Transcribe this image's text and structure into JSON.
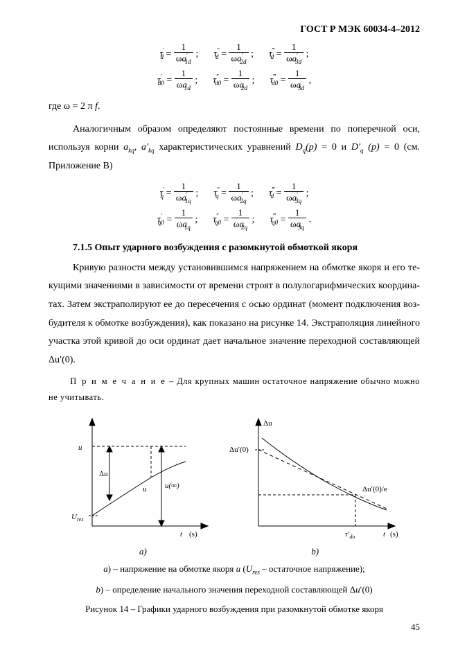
{
  "header": "ГОСТ Р МЭК 60034-4–2012",
  "eq1": {
    "t1": {
      "lhs": "τ",
      "lhs_sub": "d",
      "lhs_sup": "′",
      "num": "1",
      "den_pre": "ω",
      "den_var": "a",
      "den_sub": "1d",
      "den_sup": "′"
    },
    "t2": {
      "lhs": "τ",
      "lhs_sub": "d",
      "lhs_sup": "″",
      "num": "1",
      "den_pre": "ω",
      "den_var": "a",
      "den_sub": "2d",
      "den_sup": "′"
    },
    "t3": {
      "lhs": "τ",
      "lhs_sub": "d",
      "lhs_sup": "‴",
      "num": "1",
      "den_pre": "ω",
      "den_var": "a",
      "den_sub": "3d",
      "den_sup": "′"
    }
  },
  "eq2": {
    "t1": {
      "lhs": "τ",
      "lhs_sub": "d0",
      "lhs_sup": "′",
      "num": "1",
      "den_pre": "ω",
      "den_var": "a",
      "den_sub": "1d",
      "den_sup": ""
    },
    "t2": {
      "lhs": "τ",
      "lhs_sub": "d0",
      "lhs_sup": "″",
      "num": "1",
      "den_pre": "ω",
      "den_var": "a",
      "den_sub": "2d",
      "den_sup": ""
    },
    "t3": {
      "lhs": "τ",
      "lhs_sub": "d0",
      "lhs_sup": "‴",
      "num": "1",
      "den_pre": "ω",
      "den_var": "a",
      "den_sub": "3d",
      "den_sup": ""
    }
  },
  "where_line": "где ω = 2 π ",
  "where_f": "f",
  "where_dot": ".",
  "para1_a": "Аналогичным образом определяют постоянные времени по поперечной оси, исполь­зуя корни ",
  "para1_b": " характеристических уравнений ",
  "para1_c": " = 0 и ",
  "para1_d": " = 0 (см. Приложение В)",
  "a_kq": "a",
  "a_kq_sub": "kq",
  "ap_kq": "a′",
  "ap_kq_sub": "kq",
  "Dq": "D",
  "Dq_sub": "q",
  "Dq_arg": "(p)",
  "Dqp": "D′",
  "Dqp_sub": "q",
  "Dqp_arg": " (p)",
  "eq3": {
    "t1": {
      "lhs": "τ",
      "lhs_sub": "q",
      "lhs_sup": "′",
      "num": "1",
      "den_pre": "ω",
      "den_var": "a",
      "den_sub": "1q",
      "den_sup": "′"
    },
    "t2": {
      "lhs": "τ",
      "lhs_sub": "q",
      "lhs_sup": "″",
      "num": "1",
      "den_pre": "ω",
      "den_var": "a",
      "den_sub": "2q",
      "den_sup": "′"
    },
    "t3": {
      "lhs": "τ",
      "lhs_sub": "d",
      "lhs_sup": "‴",
      "num": "1",
      "den_pre": "ω",
      "den_var": "a",
      "den_sub": "3q",
      "den_sup": "′"
    }
  },
  "eq4": {
    "t1": {
      "lhs": "τ",
      "lhs_sub": "q0",
      "lhs_sup": "′",
      "num": "1",
      "den_pre": "ω",
      "den_var": "a",
      "den_sub": "1q",
      "den_sup": ""
    },
    "t2": {
      "lhs": "τ",
      "lhs_sub": "q0",
      "lhs_sup": "″",
      "num": "1",
      "den_pre": "ω",
      "den_var": "a",
      "den_sub": "2q",
      "den_sup": ""
    },
    "t3": {
      "lhs": "τ",
      "lhs_sub": "q0",
      "lhs_sup": "‴",
      "num": "1",
      "den_pre": "ω",
      "den_var": "a",
      "den_sub": "3q",
      "den_sup": ""
    }
  },
  "section_head": "7.1.5 Опыт ударного возбуждения с разомкнутой обмоткой якоря",
  "para2": "Кривую разности между установившимся напряжением на обмотке якоря и его те­кущими значениями в зависимости от времени строят в полулогарифмических координа­тах. Затем экстраполируют ее до пересечения с осью ординат (момент подключения  воз­будителя к обмотке возбуждения), как показано на рисунке 14. Экстраполяция линейного участка этой кривой до оси ординат дает начальное значение переходной составляющей Δu′(0).",
  "note_prefix": "П р и м е ч а н и е",
  "note_body": "  –  Для крупных машин остаточное напряжение обычно можно не учиты­вать.",
  "figA": {
    "y_label": "u",
    "du": "Δu",
    "u_curve": "u",
    "u_inf": "u(∞)",
    "U_res": "U",
    "U_res_sub": "res",
    "x_label": "t",
    "x_unit": "(s)"
  },
  "figB": {
    "y_label": "Δu",
    "du0": "Δu′(0)",
    "du0e": "Δu′(0)/e",
    "tau": "τ′",
    "tau_sub": "do",
    "x_label": "t",
    "x_unit": "(s)"
  },
  "labA": "a)",
  "labB": "b)",
  "cap_a_pre": "a",
  "cap_a": ") – напряжение на обмотке якоря ",
  "cap_a_u": "u",
  "cap_a_paren_open": " (",
  "cap_a_U": "U",
  "cap_a_U_sub": "res",
  "cap_a_rest": " – остаточное напряжение);",
  "cap_b_pre": "b",
  "cap_b": ") – определение начального значения переходной составляющей Δ",
  "cap_b_u": "u",
  "cap_b_rest": "′(0)",
  "fig_caption": "Рисунок 14 – Графики ударного возбуждения при разомкнутой обмотке якоря",
  "page_number": "45",
  "style": {
    "axis_color": "#000000",
    "dash": "4 3",
    "fontA": 11,
    "fontB": 11
  }
}
